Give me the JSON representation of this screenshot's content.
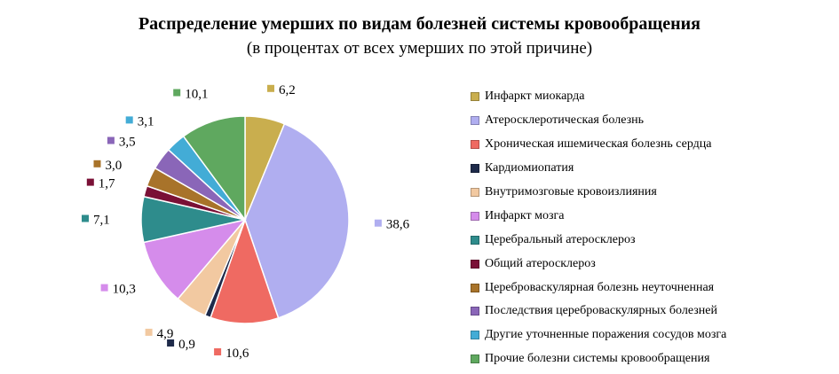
{
  "chart_data": {
    "type": "pie",
    "title": "Распределение умерших по видам болезней системы кровообращения",
    "subtitle": "(в процентах от всех умерших по этой причине)",
    "categories": [
      "Инфаркт миокарда",
      "Атеросклеротическая болезнь",
      "Хроническая ишемическая болезнь сердца",
      "Кардиомиопатия",
      "Внутримозговые кровоизлияния",
      "Инфаркт мозга",
      "Церебральный атеросклероз",
      "Общий атеросклероз",
      "Цереброваскулярная болезнь неуточненная",
      "Последствия цереброваскулярных болезней",
      "Другие уточненные поражения сосудов мозга",
      "Прочие болезни системы кровообращения"
    ],
    "values": [
      6.2,
      38.6,
      10.6,
      0.9,
      4.9,
      10.3,
      7.1,
      1.7,
      3.0,
      3.5,
      3.1,
      10.1
    ],
    "data_labels": [
      "6,2",
      "38,6",
      "10,6",
      "0,9",
      "4,9",
      "10,3",
      "7,1",
      "1,7",
      "3,0",
      "3,5",
      "3,1",
      "10,1"
    ],
    "colors": [
      "#C9AE4E",
      "#B0AEF0",
      "#EF6A62",
      "#1E2A4A",
      "#F2C9A1",
      "#D58CEB",
      "#2E8C8C",
      "#7A1036",
      "#A8732A",
      "#8A66B8",
      "#43ACD6",
      "#5FA85F"
    ],
    "legend_position": "right",
    "start_angle": "top",
    "direction": "clockwise"
  }
}
